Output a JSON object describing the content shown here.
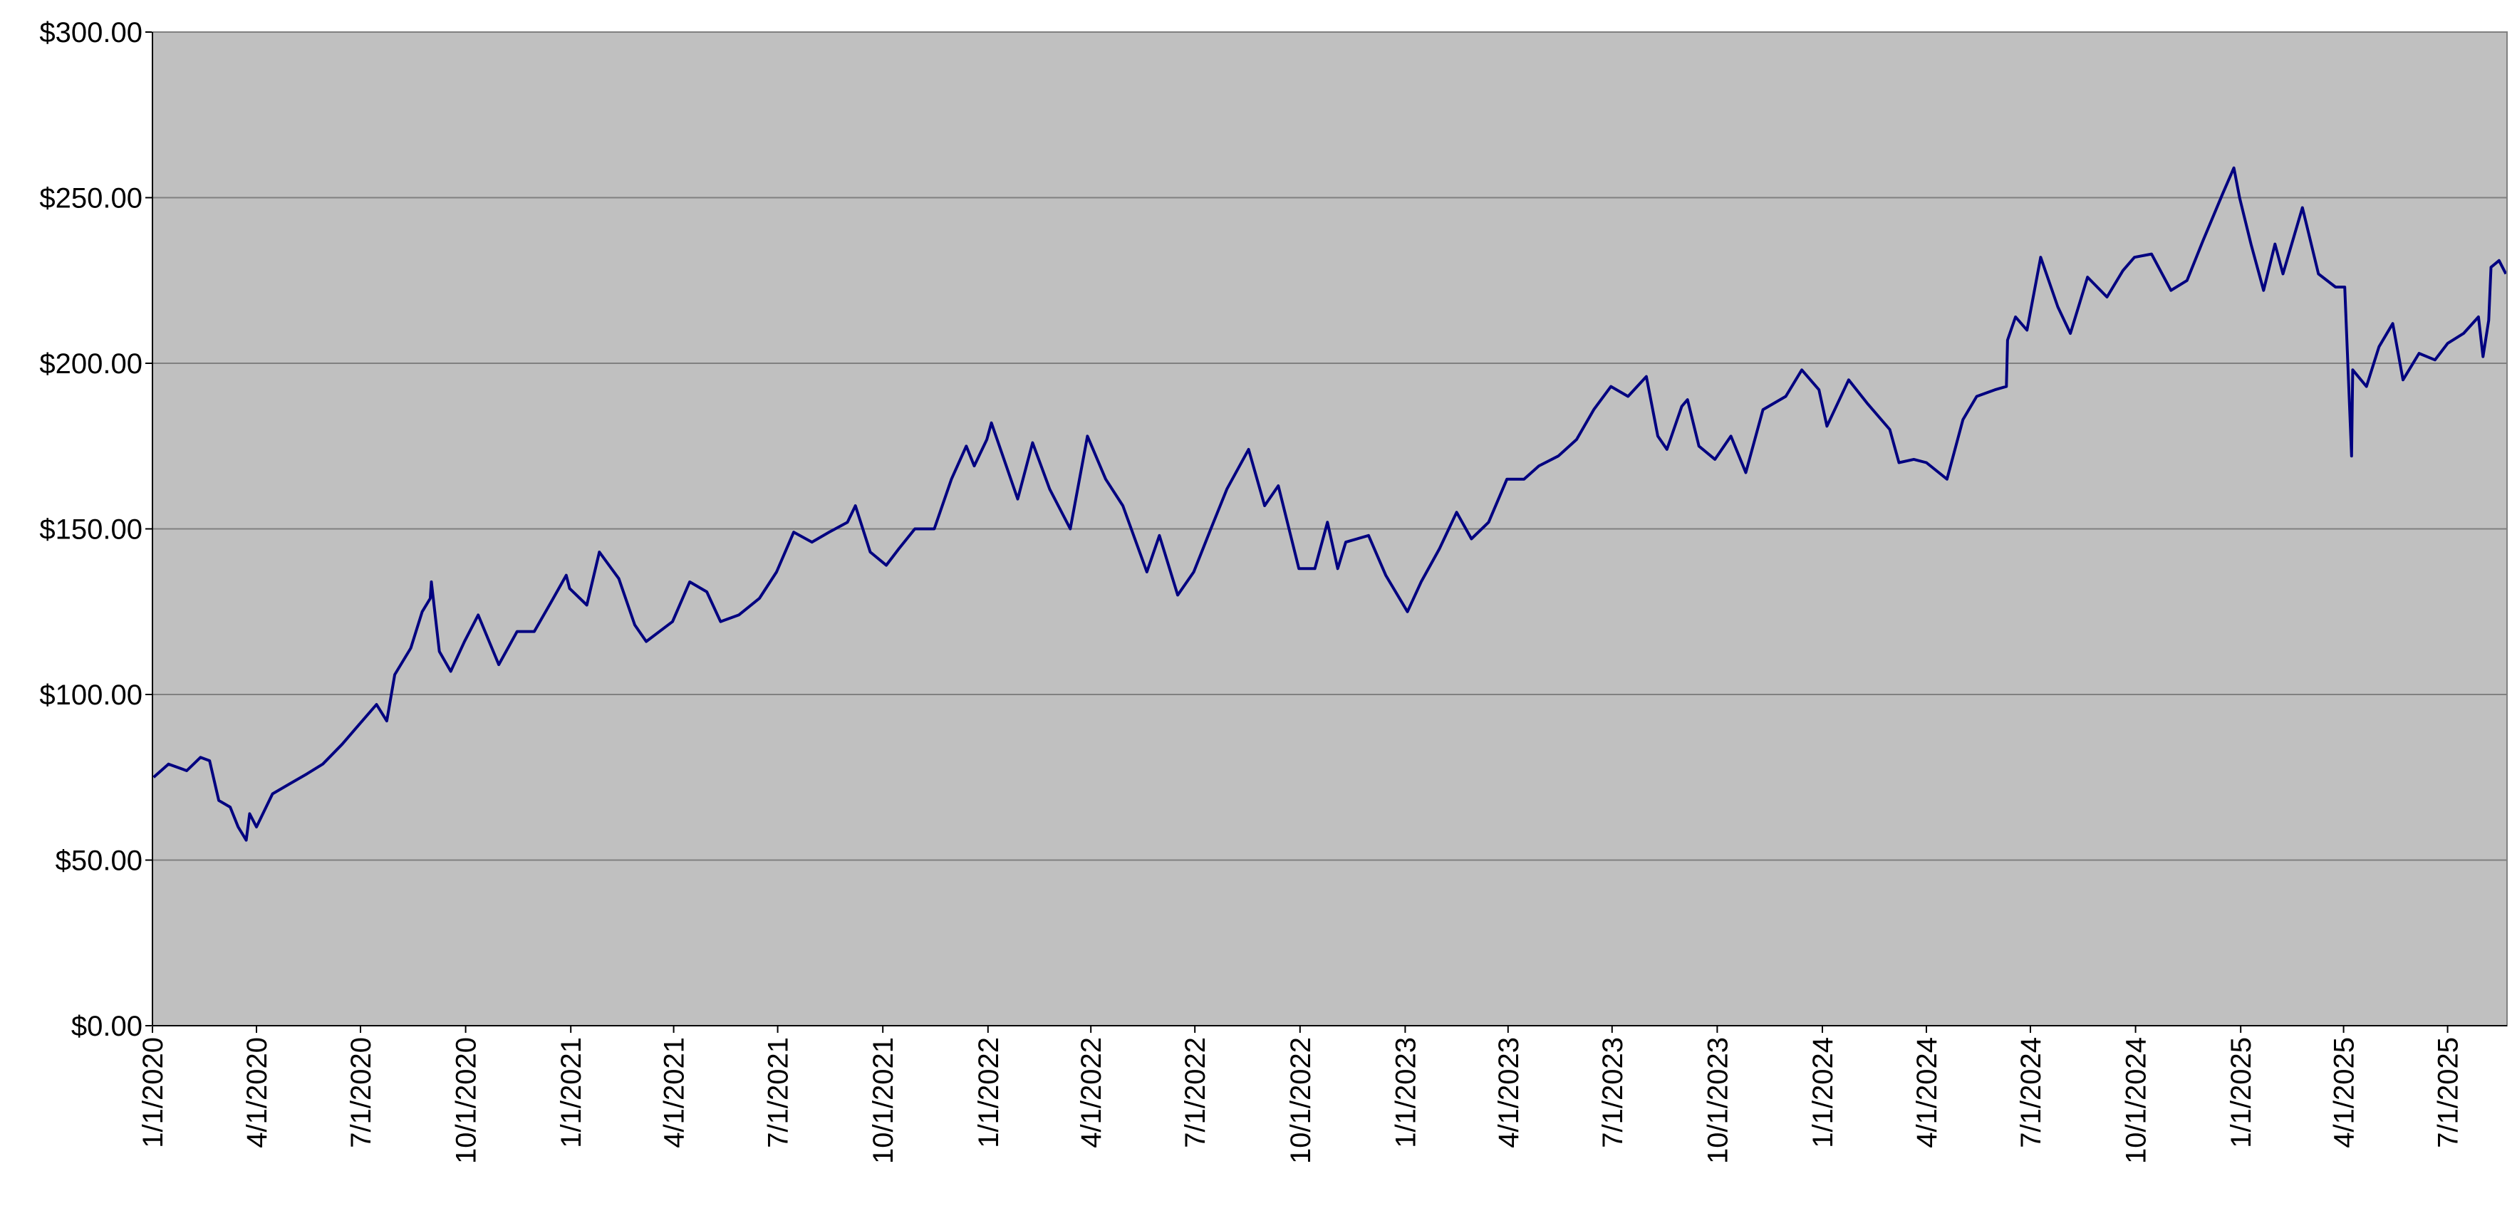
{
  "chart_data": {
    "type": "line",
    "color": "#000080",
    "background": "#c0c0c0",
    "grid": true,
    "x": [
      "2020-01-02",
      "2020-01-15",
      "2020-01-31",
      "2020-02-12",
      "2020-02-20",
      "2020-02-28",
      "2020-03-09",
      "2020-03-16",
      "2020-03-23",
      "2020-03-26",
      "2020-04-01",
      "2020-04-15",
      "2020-04-30",
      "2020-05-15",
      "2020-05-29",
      "2020-06-15",
      "2020-06-30",
      "2020-07-15",
      "2020-07-24",
      "2020-07-31",
      "2020-08-14",
      "2020-08-24",
      "2020-08-31",
      "2020-09-01",
      "2020-09-08",
      "2020-09-18",
      "2020-09-30",
      "2020-10-12",
      "2020-10-30",
      "2020-11-15",
      "2020-11-30",
      "2020-12-15",
      "2020-12-28",
      "2020-12-31",
      "2021-01-15",
      "2021-01-26",
      "2021-02-12",
      "2021-02-26",
      "2021-03-08",
      "2021-03-31",
      "2021-04-15",
      "2021-04-30",
      "2021-05-12",
      "2021-05-28",
      "2021-06-15",
      "2021-06-30",
      "2021-07-15",
      "2021-07-31",
      "2021-08-15",
      "2021-08-31",
      "2021-09-07",
      "2021-09-20",
      "2021-10-04",
      "2021-10-15",
      "2021-10-29",
      "2021-11-15",
      "2021-11-30",
      "2021-12-13",
      "2021-12-20",
      "2021-12-31",
      "2022-01-04",
      "2022-01-27",
      "2022-02-09",
      "2022-02-24",
      "2022-03-14",
      "2022-03-29",
      "2022-04-14",
      "2022-04-29",
      "2022-05-20",
      "2022-05-31",
      "2022-06-16",
      "2022-06-30",
      "2022-07-15",
      "2022-07-29",
      "2022-08-17",
      "2022-08-31",
      "2022-09-12",
      "2022-09-30",
      "2022-10-14",
      "2022-10-25",
      "2022-11-03",
      "2022-11-10",
      "2022-11-30",
      "2022-12-15",
      "2023-01-03",
      "2023-01-15",
      "2023-01-31",
      "2023-02-15",
      "2023-02-28",
      "2023-03-15",
      "2023-03-31",
      "2023-04-15",
      "2023-04-28",
      "2023-05-15",
      "2023-05-31",
      "2023-06-15",
      "2023-06-30",
      "2023-07-15",
      "2023-07-31",
      "2023-08-10",
      "2023-08-18",
      "2023-08-31",
      "2023-09-05",
      "2023-09-15",
      "2023-09-29",
      "2023-10-13",
      "2023-10-26",
      "2023-11-10",
      "2023-11-30",
      "2023-12-14",
      "2023-12-29",
      "2024-01-05",
      "2024-01-24",
      "2024-02-09",
      "2024-02-29",
      "2024-03-08",
      "2024-03-21",
      "2024-04-01",
      "2024-04-19",
      "2024-05-03",
      "2024-05-15",
      "2024-05-31",
      "2024-06-10",
      "2024-06-11",
      "2024-06-18",
      "2024-06-28",
      "2024-07-10",
      "2024-07-25",
      "2024-08-05",
      "2024-08-20",
      "2024-09-06",
      "2024-09-20",
      "2024-09-30",
      "2024-10-15",
      "2024-11-01",
      "2024-11-15",
      "2024-11-29",
      "2024-12-16",
      "2024-12-26",
      "2024-12-31",
      "2025-01-10",
      "2025-01-21",
      "2025-01-31",
      "2025-02-07",
      "2025-02-24",
      "2025-03-10",
      "2025-03-25",
      "2025-04-02",
      "2025-04-08",
      "2025-04-09",
      "2025-04-21",
      "2025-05-02",
      "2025-05-14",
      "2025-05-23",
      "2025-06-06",
      "2025-06-20",
      "2025-07-01",
      "2025-07-15",
      "2025-07-28",
      "2025-08-01",
      "2025-08-06",
      "2025-08-08",
      "2025-08-15",
      "2025-08-21"
    ],
    "values": [
      75,
      79,
      77,
      81,
      80,
      68,
      66,
      60,
      56,
      64,
      60,
      70,
      73,
      76,
      79,
      85,
      91,
      97,
      92,
      106,
      114,
      125,
      129,
      134,
      113,
      107,
      116,
      124,
      109,
      119,
      119,
      128,
      136,
      132,
      127,
      143,
      135,
      121,
      116,
      122,
      134,
      131,
      122,
      124,
      129,
      137,
      149,
      146,
      149,
      152,
      157,
      143,
      139,
      144,
      150,
      150,
      165,
      175,
      169,
      177,
      182,
      159,
      176,
      162,
      150,
      178,
      165,
      157,
      137,
      148,
      130,
      137,
      150,
      162,
      174,
      157,
      163,
      138,
      138,
      152,
      138,
      146,
      148,
      136,
      125,
      134,
      144,
      155,
      147,
      152,
      165,
      165,
      169,
      172,
      177,
      186,
      193,
      190,
      196,
      178,
      174,
      187,
      189,
      175,
      171,
      178,
      167,
      186,
      190,
      198,
      192,
      181,
      195,
      188,
      180,
      170,
      171,
      170,
      165,
      183,
      190,
      192,
      193,
      207,
      214,
      210,
      232,
      217,
      209,
      226,
      220,
      228,
      232,
      233,
      222,
      225,
      237,
      251,
      259,
      250,
      236,
      222,
      236,
      227,
      247,
      227,
      223,
      223,
      172,
      198,
      193,
      205,
      212,
      195,
      203,
      201,
      206,
      209,
      214,
      202,
      213,
      229,
      231,
      227
    ],
    "xlim": [
      "2020-01-01",
      "2025-08-22"
    ],
    "xticks": [
      {
        "value": "2020-01-01",
        "label": "1/1/2020"
      },
      {
        "value": "2020-04-01",
        "label": "4/1/2020"
      },
      {
        "value": "2020-07-01",
        "label": "7/1/2020"
      },
      {
        "value": "2020-10-01",
        "label": "10/1/2020"
      },
      {
        "value": "2021-01-01",
        "label": "1/1/2021"
      },
      {
        "value": "2021-04-01",
        "label": "4/1/2021"
      },
      {
        "value": "2021-07-01",
        "label": "7/1/2021"
      },
      {
        "value": "2021-10-01",
        "label": "10/1/2021"
      },
      {
        "value": "2022-01-01",
        "label": "1/1/2022"
      },
      {
        "value": "2022-04-01",
        "label": "4/1/2022"
      },
      {
        "value": "2022-07-01",
        "label": "7/1/2022"
      },
      {
        "value": "2022-10-01",
        "label": "10/1/2022"
      },
      {
        "value": "2023-01-01",
        "label": "1/1/2023"
      },
      {
        "value": "2023-04-01",
        "label": "4/1/2023"
      },
      {
        "value": "2023-07-01",
        "label": "7/1/2023"
      },
      {
        "value": "2023-10-01",
        "label": "10/1/2023"
      },
      {
        "value": "2024-01-01",
        "label": "1/1/2024"
      },
      {
        "value": "2024-04-01",
        "label": "4/1/2024"
      },
      {
        "value": "2024-07-01",
        "label": "7/1/2024"
      },
      {
        "value": "2024-10-01",
        "label": "10/1/2024"
      },
      {
        "value": "2025-01-01",
        "label": "1/1/2025"
      },
      {
        "value": "2025-04-01",
        "label": "4/1/2025"
      },
      {
        "value": "2025-07-01",
        "label": "7/1/2025"
      }
    ],
    "ylim": [
      0,
      300
    ],
    "yticks": [
      {
        "value": 0,
        "label": "$0.00"
      },
      {
        "value": 50,
        "label": "$50.00"
      },
      {
        "value": 100,
        "label": "$100.00"
      },
      {
        "value": 150,
        "label": "$150.00"
      },
      {
        "value": 200,
        "label": "$200.00"
      },
      {
        "value": 250,
        "label": "$250.00"
      },
      {
        "value": 300,
        "label": "$300.00"
      }
    ]
  }
}
